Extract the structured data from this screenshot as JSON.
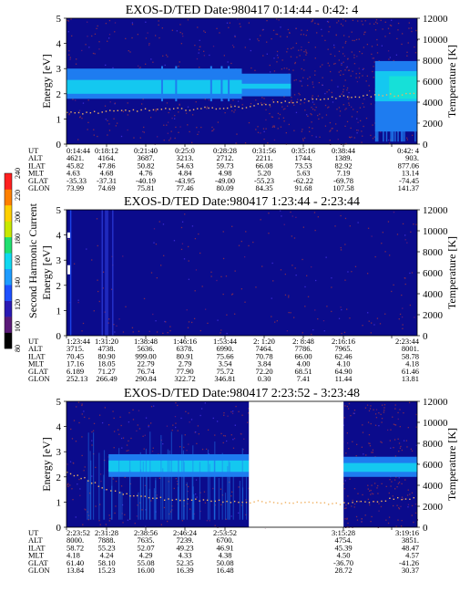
{
  "colors": {
    "bg_panel": "#0b0b8c",
    "band": "#1e7cf0",
    "band_core": "#14c8f0",
    "band_peak": "#16e0d8",
    "speckle": "#7a2a55",
    "temp_trace": "#f0b060",
    "gap": "#ffffff"
  },
  "colorbar": {
    "label": "Second Harmonic Current",
    "ticks": [
      "80",
      "100",
      "120",
      "140",
      "160",
      "180",
      "200",
      "220",
      "240"
    ],
    "colors": [
      "#000000",
      "#5a1a78",
      "#2a1ab4",
      "#1e50ff",
      "#1e9cff",
      "#10d8f0",
      "#20e070",
      "#c8e800",
      "#ffd000",
      "#ff8000",
      "#ff2020"
    ]
  },
  "chart_data": [
    {
      "type": "heatmap",
      "title": "EXOS-D/TED  Date:980417  0:14:44 - 0:42: 4",
      "ylabel": "Energy [eV]",
      "y2label": "Temperature [K]",
      "ylim": [
        0,
        5
      ],
      "y2lim": [
        0,
        12000
      ],
      "yticks": [
        "0",
        "1",
        "2",
        "3",
        "4",
        "5"
      ],
      "y2ticks": [
        "0",
        "2000",
        "4000",
        "6000",
        "8000",
        "10000",
        "12000"
      ],
      "gaps": [],
      "band_segments": [
        {
          "x0": 0.0,
          "x1": 0.5,
          "e_low": 1.8,
          "e_high": 3.0,
          "core_low": 2.0,
          "core_high": 2.55
        },
        {
          "x0": 0.5,
          "x1": 0.64,
          "e_low": 1.9,
          "e_high": 2.8,
          "core_low": 2.2,
          "core_high": 2.4
        },
        {
          "x0": 0.88,
          "x1": 1.0,
          "e_low": 0.5,
          "e_high": 3.3,
          "core_low": 1.7,
          "core_high": 2.9
        }
      ],
      "temperature_trace": [
        [
          0.0,
          3000
        ],
        [
          0.1,
          3100
        ],
        [
          0.2,
          3300
        ],
        [
          0.35,
          3400
        ],
        [
          0.5,
          3600
        ],
        [
          0.6,
          4000
        ],
        [
          0.7,
          4300
        ],
        [
          0.8,
          4600
        ],
        [
          0.9,
          4700
        ],
        [
          1.0,
          4800
        ]
      ],
      "ephemeris": {
        "labels": [
          "UT",
          "ALT",
          "ILAT",
          "MLT",
          "GLAT",
          "GLON"
        ],
        "columns": [
          [
            "0:14:44",
            "4621.",
            "45.82",
            "4.63",
            "-35.33",
            "73.99"
          ],
          [
            "0:18:12",
            "4164.",
            "47.86",
            "4.68",
            "-37.31",
            "74.69"
          ],
          [
            "0:21:40",
            "3687.",
            "50.82",
            "4.76",
            "-40.19",
            "75.81"
          ],
          [
            "0:25:0",
            "3213.",
            "54.63",
            "4.84",
            "-43.95",
            "77.46"
          ],
          [
            "0:28:28",
            "2712.",
            "59.73",
            "4.98",
            "-49.00",
            "80.09"
          ],
          [
            "0:31:56",
            "2211.",
            "66.08",
            "5.20",
            "-55.23",
            "84.35"
          ],
          [
            "0:35:16",
            "1744.",
            "73.53",
            "5.63",
            "-62.22",
            "91.68"
          ],
          [
            "0:38:44",
            "1389.",
            "82.92",
            "7.19",
            "-69.78",
            "107.58"
          ],
          [
            "0:42: 4",
            "903.",
            "877.06",
            "13.14",
            "-74.45",
            "141.37"
          ]
        ]
      }
    },
    {
      "type": "heatmap",
      "title": "EXOS-D/TED  Date:980417  1:23:44 - 2:23:44",
      "ylabel": "Energy [eV]",
      "y2label": "Temperature [K]",
      "ylim": [
        0,
        5
      ],
      "y2lim": [
        0,
        12000
      ],
      "yticks": [
        "0",
        "1",
        "2",
        "3",
        "4",
        "5"
      ],
      "y2ticks": [
        "0",
        "2000",
        "4000",
        "6000",
        "8000",
        "10000",
        "12000"
      ],
      "gaps": [],
      "band_segments": [],
      "temperature_trace": [],
      "ephemeris": {
        "labels": [
          "UT",
          "ALT",
          "ILAT",
          "MLT",
          "GLAT",
          "GLON"
        ],
        "columns": [
          [
            "1:23:44",
            "3715.",
            "70.45",
            "17.16",
            "6.189",
            "252.13"
          ],
          [
            "1:31:20",
            "4738.",
            "80.90",
            "18.05",
            "71.27",
            "266.49"
          ],
          [
            "1:38:48",
            "5636.",
            "999.00",
            "22.79",
            "76.74",
            "290.84"
          ],
          [
            "1:46:16",
            "6378.",
            "80.91",
            "2.79",
            "77.90",
            "322.72"
          ],
          [
            "1:53:44",
            "6990.",
            "75.66",
            "3.54",
            "75.72",
            "346.81"
          ],
          [
            "2: 1:20",
            "7464.",
            "70.78",
            "3.84",
            "72.20",
            "0.30"
          ],
          [
            "2: 8:48",
            "7786.",
            "66.00",
            "4.00",
            "68.51",
            "7.41"
          ],
          [
            "2:16:16",
            "7965.",
            "62.46",
            "4.10",
            "64.90",
            "11.44"
          ],
          [
            "2:23:44",
            "8001.",
            "58.78",
            "4.18",
            "61.46",
            "13.81"
          ]
        ]
      }
    },
    {
      "type": "heatmap",
      "title": "EXOS-D/TED  Date:980417  2:23:52 - 3:23:48",
      "ylabel": "Energy [eV]",
      "y2label": "Temperature [K]",
      "ylim": [
        0,
        5
      ],
      "y2lim": [
        0,
        12000
      ],
      "yticks": [
        "0",
        "1",
        "2",
        "3",
        "4",
        "5"
      ],
      "y2ticks": [
        "0",
        "2000",
        "4000",
        "6000",
        "8000",
        "10000",
        "12000"
      ],
      "gaps": [
        [
          0.52,
          0.79
        ]
      ],
      "band_segments": [
        {
          "x0": 0.12,
          "x1": 0.52,
          "e_low": 2.0,
          "e_high": 2.9,
          "core_low": 2.2,
          "core_high": 2.65
        },
        {
          "x0": 0.79,
          "x1": 1.0,
          "e_low": 2.0,
          "e_high": 2.8,
          "core_low": 2.2,
          "core_high": 2.55
        }
      ],
      "temperature_trace": [
        [
          0.0,
          5200
        ],
        [
          0.05,
          4700
        ],
        [
          0.1,
          3900
        ],
        [
          0.15,
          3300
        ],
        [
          0.2,
          3000
        ],
        [
          0.3,
          2700
        ],
        [
          0.4,
          2600
        ],
        [
          0.5,
          2500
        ],
        [
          0.79,
          2300
        ],
        [
          0.85,
          2500
        ],
        [
          0.92,
          2700
        ],
        [
          1.0,
          2900
        ]
      ],
      "ephemeris": {
        "labels": [
          "UT",
          "ALT",
          "ILAT",
          "MLT",
          "GLAT",
          "GLON"
        ],
        "columns": [
          [
            "2:23:52",
            "8000.",
            "58.72",
            "4.18",
            "61.40",
            "13.84"
          ],
          [
            "2:31:28",
            "7888.",
            "55.23",
            "4.24",
            "58.10",
            "15.23"
          ],
          [
            "2:38:56",
            "7635.",
            "52.07",
            "4.29",
            "55.08",
            "16.00"
          ],
          [
            "2:46:24",
            "7239.",
            "49.23",
            "4.33",
            "52.35",
            "16.39"
          ],
          [
            "2:53:52",
            "6700.",
            "46.91",
            "4.38",
            "50.08",
            "16.48"
          ],
          [
            "",
            "",
            "",
            "",
            "",
            ""
          ],
          [
            "",
            "",
            "",
            "",
            "",
            ""
          ],
          [
            "3:15:28",
            "4754.",
            "45.39",
            "4.50",
            "-36.70",
            "28.72"
          ],
          [
            "3:19:16",
            "3851.",
            "48.47",
            "4.57",
            "-41.26",
            "30.37"
          ]
        ]
      }
    }
  ]
}
